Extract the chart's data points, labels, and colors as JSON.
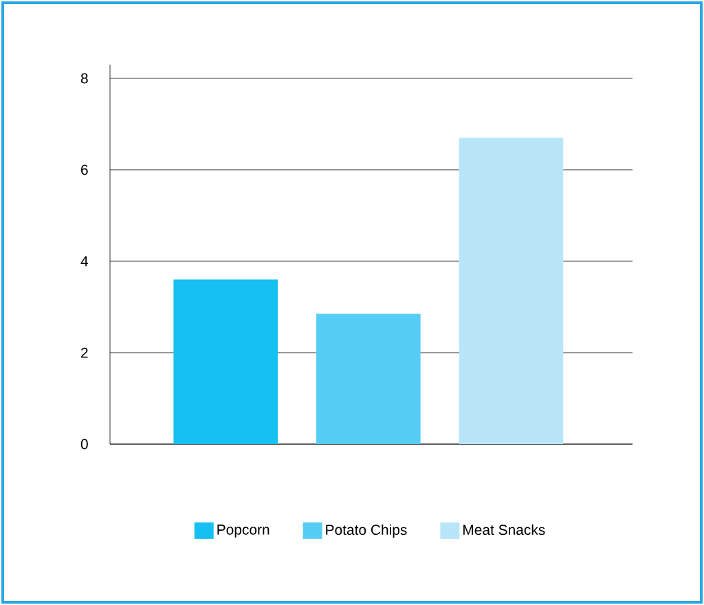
{
  "chart_data": {
    "type": "bar",
    "categories": [
      null,
      null,
      null
    ],
    "series": [
      {
        "name": "Popcorn",
        "color": "#16c0f0",
        "values": [
          3.6,
          null,
          null
        ]
      },
      {
        "name": "Potato Chips",
        "color": "#56cdf5",
        "values": [
          null,
          2.85,
          null
        ]
      },
      {
        "name": "Meat Snacks",
        "color": "#b8e6f8",
        "values": [
          null,
          null,
          6.7
        ]
      }
    ],
    "ylim": [
      0,
      8.3
    ],
    "yticks": [
      0,
      2,
      4,
      6,
      8
    ],
    "grid": "y",
    "legend": "bottom",
    "tick_labels": "y"
  }
}
